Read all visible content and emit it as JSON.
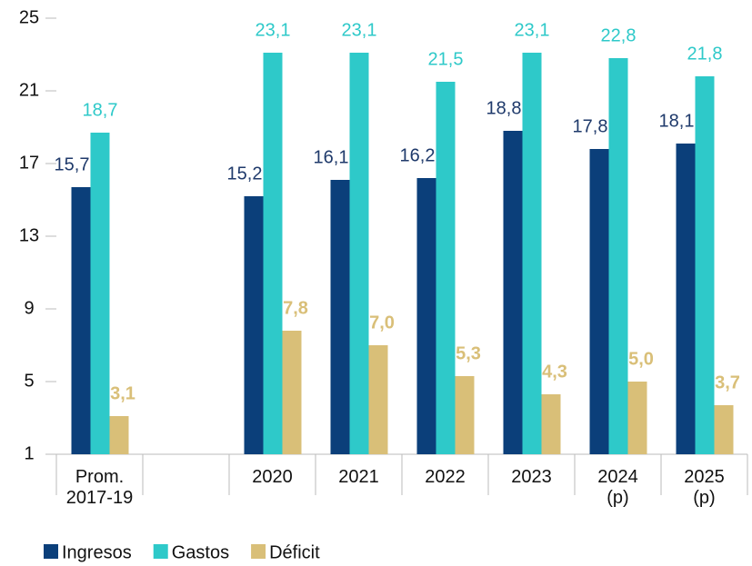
{
  "chart_data": {
    "type": "bar",
    "categories": [
      "Prom.\n2017-19",
      null,
      "2020",
      "2021",
      "2022",
      "2023",
      "2024\n(p)",
      "2025\n(p)"
    ],
    "series": [
      {
        "name": "Ingresos",
        "color": "#0b3f7a",
        "label_color": "#1f3a6b",
        "values": [
          15.7,
          null,
          15.2,
          16.1,
          16.2,
          18.8,
          17.8,
          18.1
        ],
        "value_labels": [
          "15,7",
          null,
          "15,2",
          "16,1",
          "16,2",
          "18,8",
          "17,8",
          "18,1"
        ]
      },
      {
        "name": "Gastos",
        "color": "#2ec9c9",
        "label_color": "#2ec9c9",
        "values": [
          18.7,
          null,
          23.1,
          23.1,
          21.5,
          23.1,
          22.8,
          21.8
        ],
        "value_labels": [
          "18,7",
          null,
          "23,1",
          "23,1",
          "21,5",
          "23,1",
          "22,8",
          "21,8"
        ]
      },
      {
        "name": "Déficit",
        "color": "#d9bf78",
        "label_color": "#d9bf78",
        "values": [
          3.1,
          null,
          7.8,
          7.0,
          5.3,
          4.3,
          5.0,
          3.7
        ],
        "value_labels": [
          "3,1",
          null,
          "7,8",
          "7,0",
          "5,3",
          "4,3",
          "5,0",
          "3,7"
        ]
      }
    ],
    "ylim": [
      1,
      25
    ],
    "yticks": [
      1,
      5,
      9,
      13,
      17,
      21,
      25
    ],
    "legend": "bottom"
  }
}
